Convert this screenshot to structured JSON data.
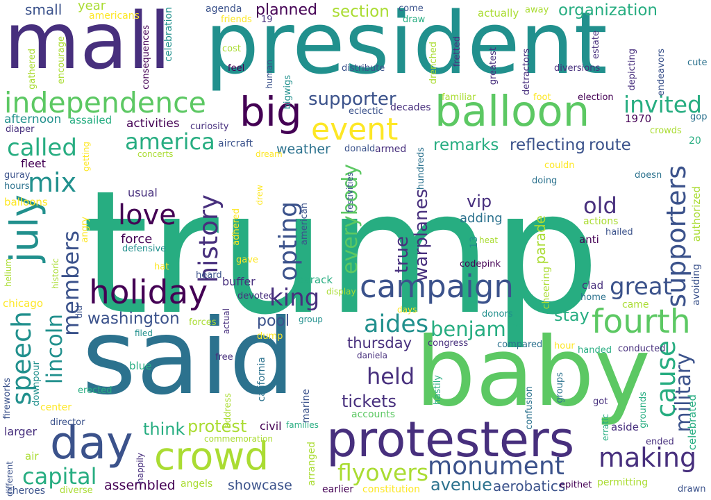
{
  "palette": {
    "c1": "#440154",
    "c2": "#472f7d",
    "c3": "#3b528b",
    "c4": "#2c728e",
    "c5": "#21908d",
    "c6": "#27ad81",
    "c7": "#5cc863",
    "c8": "#aadc32",
    "c9": "#fde725"
  },
  "words": [
    {
      "text": "trump",
      "color": "c6"
    },
    {
      "text": "said",
      "color": "c4"
    },
    {
      "text": "president",
      "color": "c5"
    },
    {
      "text": "mall",
      "color": "c2"
    },
    {
      "text": "baby",
      "color": "c7"
    },
    {
      "text": "protesters",
      "color": "c2"
    },
    {
      "text": "balloon",
      "color": "c7"
    },
    {
      "text": "crowd",
      "color": "c8"
    },
    {
      "text": "campaign",
      "color": "c3"
    },
    {
      "text": "day",
      "color": "c3"
    },
    {
      "text": "independence",
      "color": "c7"
    },
    {
      "text": "holiday",
      "color": "c1"
    },
    {
      "text": "big",
      "color": "c1"
    },
    {
      "text": "july",
      "color": "c5"
    },
    {
      "text": "fourth",
      "color": "c7"
    },
    {
      "text": "event",
      "color": "c9"
    },
    {
      "text": "supporters",
      "color": "c3"
    },
    {
      "text": "monument",
      "color": "c3"
    },
    {
      "text": "america",
      "color": "c6"
    },
    {
      "text": "speech",
      "color": "c5"
    },
    {
      "text": "lincoln",
      "color": "c5"
    },
    {
      "text": "love",
      "color": "c1"
    },
    {
      "text": "called",
      "color": "c6"
    },
    {
      "text": "mix",
      "color": "c5"
    },
    {
      "text": "history",
      "color": "c2"
    },
    {
      "text": "members",
      "color": "c3"
    },
    {
      "text": "making",
      "color": "c2"
    },
    {
      "text": "cause",
      "color": "c6"
    },
    {
      "text": "great",
      "color": "c3"
    },
    {
      "text": "aides",
      "color": "c5"
    },
    {
      "text": "king",
      "color": "c2"
    },
    {
      "text": "opting",
      "color": "c3"
    },
    {
      "text": "invited",
      "color": "c6"
    },
    {
      "text": "old",
      "color": "c2"
    },
    {
      "text": "benjamin",
      "color": "c6"
    },
    {
      "text": "everybody",
      "color": "c7"
    },
    {
      "text": "military",
      "color": "c3"
    },
    {
      "text": "held",
      "color": "c2"
    },
    {
      "text": "flyovers",
      "color": "c8"
    },
    {
      "text": "capital",
      "color": "c6"
    },
    {
      "text": "true",
      "color": "c2"
    },
    {
      "text": "supporter",
      "color": "c3"
    },
    {
      "text": "washington",
      "color": "c3"
    },
    {
      "text": "remarks",
      "color": "c6"
    },
    {
      "text": "reflecting",
      "color": "c3"
    },
    {
      "text": "route",
      "color": "c3"
    },
    {
      "text": "tickets",
      "color": "c2"
    },
    {
      "text": "warplanes",
      "color": "c2"
    },
    {
      "text": "think",
      "color": "c6"
    },
    {
      "text": "protest",
      "color": "c8"
    },
    {
      "text": "section",
      "color": "c8"
    },
    {
      "text": "planned",
      "color": "c1"
    },
    {
      "text": "organization",
      "color": "c6"
    },
    {
      "text": "thursday",
      "color": "c2"
    },
    {
      "text": "stay",
      "color": "c6"
    },
    {
      "text": "parade",
      "color": "c8"
    },
    {
      "text": "pool",
      "color": "c3"
    },
    {
      "text": "vip",
      "color": "c2"
    },
    {
      "text": "avenue",
      "color": "c4"
    },
    {
      "text": "aerobatics",
      "color": "c3"
    },
    {
      "text": "assembled",
      "color": "c1"
    },
    {
      "text": "showcase",
      "color": "c3"
    },
    {
      "text": "small",
      "color": "c3"
    },
    {
      "text": "activities",
      "color": "c1"
    },
    {
      "text": "weather",
      "color": "c4"
    },
    {
      "text": "afternoon",
      "color": "c5"
    },
    {
      "text": "usual",
      "color": "c2"
    },
    {
      "text": "force",
      "color": "c1"
    },
    {
      "text": "adding",
      "color": "c4"
    },
    {
      "text": "year",
      "color": "c8"
    },
    {
      "text": "americans",
      "color": "c9"
    },
    {
      "text": "agenda",
      "color": "c3"
    },
    {
      "text": "actually",
      "color": "c8"
    },
    {
      "text": "come",
      "color": "c3"
    },
    {
      "text": "draw",
      "color": "c6"
    },
    {
      "text": "away",
      "color": "c8"
    },
    {
      "text": "assailed",
      "color": "c6"
    },
    {
      "text": "fleet",
      "color": "c1"
    },
    {
      "text": "hours",
      "color": "c4"
    },
    {
      "text": "balloons",
      "color": "c9"
    },
    {
      "text": "guray",
      "color": "c3"
    },
    {
      "text": "diaper",
      "color": "c2"
    },
    {
      "text": "aircraft",
      "color": "c3"
    },
    {
      "text": "curiosity",
      "color": "c2"
    },
    {
      "text": "eclectic",
      "color": "c3"
    },
    {
      "text": "decades",
      "color": "c2"
    },
    {
      "text": "election",
      "color": "c1"
    },
    {
      "text": "1970",
      "color": "c1"
    },
    {
      "text": "crowds",
      "color": "c8"
    },
    {
      "text": "gop",
      "color": "c4"
    },
    {
      "text": "20",
      "color": "c6"
    },
    {
      "text": "feel",
      "color": "c1"
    },
    {
      "text": "cost",
      "color": "c8"
    },
    {
      "text": "distribute",
      "color": "c3"
    },
    {
      "text": "friends",
      "color": "c9"
    },
    {
      "text": "19",
      "color": "c2"
    },
    {
      "text": "diversions",
      "color": "c2"
    },
    {
      "text": "familiar",
      "color": "c8"
    },
    {
      "text": "foot",
      "color": "c9"
    },
    {
      "text": "cute",
      "color": "c4"
    },
    {
      "text": "doing",
      "color": "c4"
    },
    {
      "text": "couldn",
      "color": "c9"
    },
    {
      "text": "doesn",
      "color": "c4"
    },
    {
      "text": "dream",
      "color": "c9"
    },
    {
      "text": "concerts",
      "color": "c8"
    },
    {
      "text": "donald",
      "color": "c3"
    },
    {
      "text": "armed",
      "color": "c2"
    },
    {
      "text": "actions",
      "color": "c8"
    },
    {
      "text": "anti",
      "color": "c1"
    },
    {
      "text": "hailed",
      "color": "c3"
    },
    {
      "text": "heat",
      "color": "c8"
    },
    {
      "text": "codepink",
      "color": "c1"
    },
    {
      "text": "defensive",
      "color": "c5"
    },
    {
      "text": "american",
      "color": "c3"
    },
    {
      "text": "gave",
      "color": "c9"
    },
    {
      "text": "hat",
      "color": "c9"
    },
    {
      "text": "heard",
      "color": "c3"
    },
    {
      "text": "buffer",
      "color": "c2"
    },
    {
      "text": "barack",
      "color": "c6"
    },
    {
      "text": "devoted",
      "color": "c2"
    },
    {
      "text": "display",
      "color": "c8"
    },
    {
      "text": "clad",
      "color": "c2"
    },
    {
      "text": "home",
      "color": "c4"
    },
    {
      "text": "came",
      "color": "c8"
    },
    {
      "text": "chicago",
      "color": "c9"
    },
    {
      "text": "days",
      "color": "c9"
    },
    {
      "text": "donors",
      "color": "c5"
    },
    {
      "text": "forces",
      "color": "c8"
    },
    {
      "text": "dump",
      "color": "c9"
    },
    {
      "text": "group",
      "color": "c5"
    },
    {
      "text": "filed",
      "color": "c5"
    },
    {
      "text": "congress",
      "color": "c2"
    },
    {
      "text": "compared",
      "color": "c4"
    },
    {
      "text": "hour",
      "color": "c9"
    },
    {
      "text": "handed",
      "color": "c6"
    },
    {
      "text": "conducted",
      "color": "c2"
    },
    {
      "text": "daniela",
      "color": "c2"
    },
    {
      "text": "free",
      "color": "c2"
    },
    {
      "text": "blue",
      "color": "c6"
    },
    {
      "text": "erected",
      "color": "c6"
    },
    {
      "text": "center",
      "color": "c9"
    },
    {
      "text": "director",
      "color": "c3"
    },
    {
      "text": "larger",
      "color": "c2"
    },
    {
      "text": "civil",
      "color": "c1"
    },
    {
      "text": "families",
      "color": "c6"
    },
    {
      "text": "accounts",
      "color": "c7"
    },
    {
      "text": "commemoration",
      "color": "c8"
    },
    {
      "text": "got",
      "color": "c2"
    },
    {
      "text": "aside",
      "color": "c2"
    },
    {
      "text": "ended",
      "color": "c2"
    },
    {
      "text": "air",
      "color": "c8"
    },
    {
      "text": "angels",
      "color": "c8"
    },
    {
      "text": "earlier",
      "color": "c1"
    },
    {
      "text": "constitution",
      "color": "c9"
    },
    {
      "text": "epithet",
      "color": "c1"
    },
    {
      "text": "permitting",
      "color": "c8"
    },
    {
      "text": "drawn",
      "color": "c3"
    },
    {
      "text": "cheroes",
      "color": "c3"
    },
    {
      "text": "diverse",
      "color": "c8"
    },
    {
      "text": "mall",
      "color": "c2"
    },
    {
      "text": "celebration",
      "color": "c5"
    },
    {
      "text": "consequences",
      "color": "c1"
    },
    {
      "text": "encourage",
      "color": "c8"
    },
    {
      "text": "gathered",
      "color": "c8"
    },
    {
      "text": "human",
      "color": "c3"
    },
    {
      "text": "bigwigs",
      "color": "c5"
    },
    {
      "text": "drenched",
      "color": "c8"
    },
    {
      "text": "fretted",
      "color": "c2"
    },
    {
      "text": "greatest",
      "color": "c2"
    },
    {
      "text": "detractors",
      "color": "c2"
    },
    {
      "text": "estate",
      "color": "c2"
    },
    {
      "text": "depicting",
      "color": "c2"
    },
    {
      "text": "endeavors",
      "color": "c3"
    },
    {
      "text": "getting",
      "color": "c9"
    },
    {
      "text": "hundreds",
      "color": "c4"
    },
    {
      "text": "festivities",
      "color": "c3"
    },
    {
      "text": "drew",
      "color": "c9"
    },
    {
      "text": "adhered",
      "color": "c9"
    },
    {
      "text": "angry",
      "color": "c9"
    },
    {
      "text": "13",
      "color": "c5"
    },
    {
      "text": "historic",
      "color": "c8"
    },
    {
      "text": "helium",
      "color": "c8"
    },
    {
      "text": "did",
      "color": "c3"
    },
    {
      "text": "cheering",
      "color": "c8"
    },
    {
      "text": "avoiding",
      "color": "c3"
    },
    {
      "text": "authorized",
      "color": "c8"
    },
    {
      "text": "celebrated",
      "color": "c6"
    },
    {
      "text": "grounds",
      "color": "c6"
    },
    {
      "text": "erratic",
      "color": "c6"
    },
    {
      "text": "confusion",
      "color": "c4"
    },
    {
      "text": "groups",
      "color": "c4"
    },
    {
      "text": "hastily",
      "color": "c6"
    },
    {
      "text": "fireworks",
      "color": "c3"
    },
    {
      "text": "downpour",
      "color": "c5"
    },
    {
      "text": "address",
      "color": "c8"
    },
    {
      "text": "california",
      "color": "c4"
    },
    {
      "text": "actual",
      "color": "c2"
    },
    {
      "text": "marine",
      "color": "c3"
    },
    {
      "text": "arranged",
      "color": "c8"
    },
    {
      "text": "happily",
      "color": "c2"
    },
    {
      "text": "different",
      "color": "c3"
    }
  ]
}
